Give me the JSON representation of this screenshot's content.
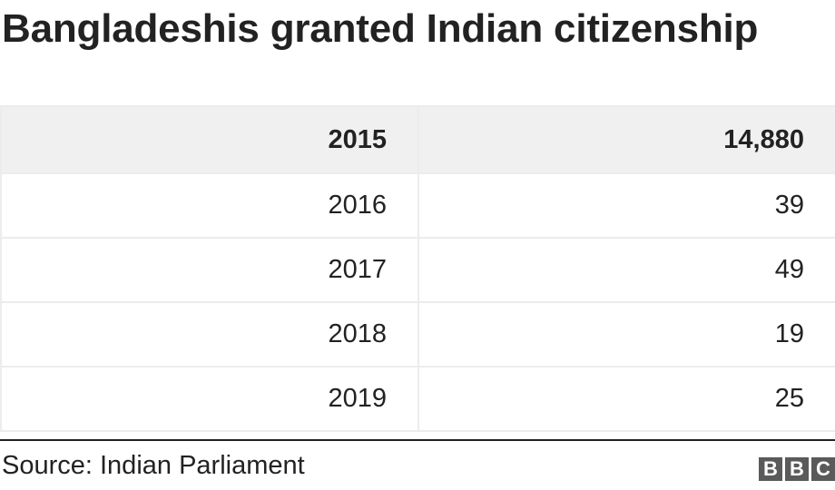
{
  "title": "Bangladeshis granted Indian citizenship",
  "chart_data": {
    "type": "table",
    "title": "Bangladeshis granted Indian citizenship",
    "header": [
      "2015",
      "14,880"
    ],
    "rows": [
      [
        "2016",
        "39"
      ],
      [
        "2017",
        "49"
      ],
      [
        "2018",
        "19"
      ],
      [
        "2019",
        "25"
      ]
    ]
  },
  "source": "Source: Indian Parliament",
  "logo": {
    "letters": [
      "B",
      "B",
      "C"
    ],
    "color": "#5a5a5a"
  },
  "colors": {
    "header_bg": "#f0f0f0",
    "grid": "#ececec",
    "text": "#222222"
  }
}
